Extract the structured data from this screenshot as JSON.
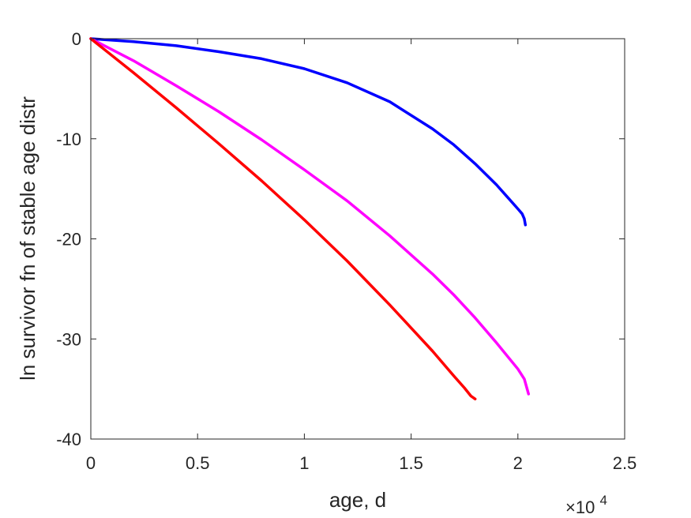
{
  "chart_data": {
    "type": "line",
    "title": "",
    "xlabel": "age, d",
    "ylabel": "ln survivor fn of stable age distr",
    "x_multiplier_label": "×10",
    "x_multiplier_exponent": "4",
    "xlim": [
      0,
      25000
    ],
    "ylim": [
      -40,
      0
    ],
    "xticks": [
      0,
      5000,
      10000,
      15000,
      20000,
      25000
    ],
    "xtick_labels": [
      "0",
      "0.5",
      "1",
      "1.5",
      "2",
      "2.5"
    ],
    "yticks": [
      0,
      -10,
      -20,
      -30,
      -40
    ],
    "ytick_labels": [
      "0",
      "-10",
      "-20",
      "-30",
      "-40"
    ],
    "grid": false,
    "legend": "none",
    "series": [
      {
        "color": "#0000ff",
        "x": [
          0,
          2000,
          4000,
          6000,
          8000,
          10000,
          12000,
          14000,
          16000,
          17000,
          18000,
          19000,
          19500,
          20000,
          20200,
          20300,
          20350
        ],
        "y": [
          0,
          -0.3,
          -0.7,
          -1.3,
          -2.0,
          -3.0,
          -4.4,
          -6.3,
          -9.0,
          -10.6,
          -12.5,
          -14.6,
          -15.8,
          -17.0,
          -17.5,
          -18.0,
          -18.6
        ]
      },
      {
        "color": "#ff00ff",
        "x": [
          0,
          2000,
          4000,
          6000,
          8000,
          10000,
          12000,
          14000,
          16000,
          17000,
          18000,
          19000,
          19500,
          20000,
          20300,
          20500
        ],
        "y": [
          0,
          -2.2,
          -4.7,
          -7.3,
          -10.1,
          -13.1,
          -16.2,
          -19.7,
          -23.5,
          -25.6,
          -27.9,
          -30.4,
          -31.7,
          -33.0,
          -34.0,
          -35.5
        ]
      },
      {
        "color": "#ff0000",
        "x": [
          0,
          2000,
          4000,
          6000,
          8000,
          10000,
          12000,
          14000,
          15000,
          16000,
          17000,
          17500,
          17800,
          18000
        ],
        "y": [
          0,
          -3.4,
          -6.9,
          -10.5,
          -14.2,
          -18.1,
          -22.2,
          -26.6,
          -28.9,
          -31.2,
          -33.7,
          -34.9,
          -35.7,
          -36.0
        ]
      }
    ]
  }
}
